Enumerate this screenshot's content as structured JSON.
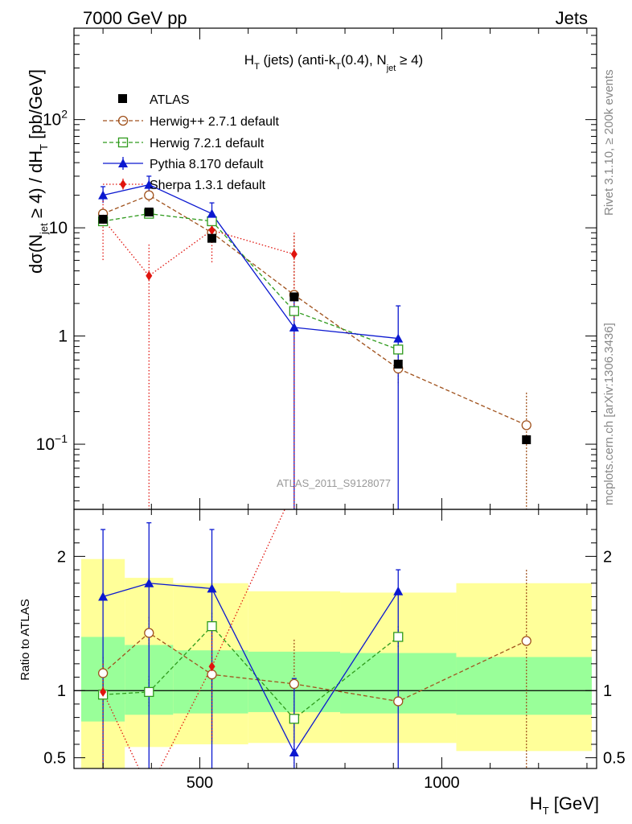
{
  "header": {
    "left": "7000 GeV pp",
    "right": "Jets"
  },
  "side_text": {
    "rivet": "Rivet 3.1.10, ≥ 200k events",
    "source": "mcplots.cern.ch [arXiv:1306.3436]"
  },
  "watermark": "ATLAS_2011_S9128077",
  "legend": {
    "atlas": "ATLAS",
    "herwigpp": "Herwig++ 2.7.1 default",
    "herwig7": "Herwig 7.2.1 default",
    "pythia": "Pythia 8.170 default",
    "sherpa": "Sherpa 1.3.1 default"
  },
  "colors": {
    "atlas": "#000000",
    "herwigpp": "#a0521d",
    "herwig7": "#2e9a1c",
    "pythia": "#0b18d0",
    "sherpa": "#e0140e",
    "band_inner": "#99ff99",
    "band_outer": "#ffff99"
  },
  "chart_data": [
    {
      "type": "line",
      "panel": "main",
      "title": "H_T (jets) (anti-k_T(0.4), N_jet ≥ 4)",
      "ylabel": "dσ(N_jet ≥ 4) / dH_T [pb/GeV]",
      "yscale": "log",
      "xlim": [
        240,
        1320
      ],
      "ylim": [
        0.025,
        700
      ],
      "yticks": [
        0.1,
        1,
        10,
        100
      ],
      "ytick_labels": [
        "10^-1",
        "1",
        "10",
        "10^2"
      ],
      "x": [
        300,
        395,
        525,
        695,
        910,
        1175
      ],
      "series": [
        {
          "name": "ATLAS",
          "values": [
            12,
            14,
            8,
            2.3,
            0.55,
            0.11
          ]
        },
        {
          "name": "Herwig++ 2.7.1 default",
          "values": [
            13.5,
            20,
            9,
            2.4,
            0.5,
            0.15
          ],
          "err_hi": [
            15,
            22,
            10,
            8.5,
            0.7,
            0.3
          ],
          "err_lo": [
            12,
            17.5,
            8.3,
            1.7,
            0.35,
            0.02
          ]
        },
        {
          "name": "Herwig 7.2.1 default",
          "values": [
            11.5,
            13.5,
            11.5,
            1.7,
            0.75,
            null
          ]
        },
        {
          "name": "Pythia 8.170 default",
          "values": [
            20,
            25,
            13.5,
            1.2,
            0.95,
            null
          ],
          "err_hi": [
            24,
            30,
            17,
            2.5,
            1.9,
            null
          ],
          "err_lo": [
            17,
            21,
            10.5,
            0.02,
            0.02,
            null
          ]
        },
        {
          "name": "Sherpa 1.3.1 default",
          "values": [
            12,
            3.6,
            9.5,
            5.7,
            null,
            null
          ],
          "err_hi": [
            19,
            7,
            12,
            9,
            null,
            null
          ],
          "err_lo": [
            5,
            0.02,
            4.7,
            0.02,
            null,
            null
          ]
        }
      ]
    },
    {
      "type": "line",
      "panel": "ratio",
      "ylabel": "Ratio to ATLAS",
      "xlabel": "H_T [GeV]",
      "xlim": [
        240,
        1320
      ],
      "ylim": [
        0.42,
        2.35
      ],
      "yticks": [
        0.5,
        1,
        2
      ],
      "ytick_labels": [
        "0.5",
        "1",
        "2"
      ],
      "xticks": [
        500,
        1000
      ],
      "xtick_labels": [
        "500",
        "1000"
      ],
      "x": [
        300,
        395,
        525,
        695,
        910,
        1175
      ],
      "bands": {
        "bin_edges": [
          255,
          345,
          445,
          600,
          790,
          1030,
          1310
        ],
        "inner_lo": [
          0.77,
          0.82,
          0.83,
          0.84,
          0.83,
          0.82
        ],
        "inner_hi": [
          1.4,
          1.34,
          1.3,
          1.29,
          1.28,
          1.25
        ],
        "outer_lo": [
          0.42,
          0.58,
          0.6,
          0.61,
          0.61,
          0.55
        ],
        "outer_hi": [
          1.98,
          1.84,
          1.8,
          1.74,
          1.73,
          1.8
        ]
      },
      "series": [
        {
          "name": "Herwig++ 2.7.1 default",
          "values": [
            1.13,
            1.43,
            1.12,
            1.05,
            0.92,
            1.37
          ],
          "err_hi": [
            1.25,
            1.55,
            1.25,
            1.38,
            null,
            1.9
          ],
          "err_lo": [
            1.02,
            1.33,
            0.62,
            0.42,
            null,
            0.42
          ]
        },
        {
          "name": "Herwig 7.2.1 default",
          "values": [
            0.97,
            0.99,
            1.48,
            0.79,
            1.4,
            null
          ],
          "err_hi": [
            1.05,
            1.11,
            1.58,
            0.86,
            1.48,
            null
          ],
          "err_lo": [
            0.88,
            0.88,
            1.38,
            0.72,
            1.32,
            null
          ]
        },
        {
          "name": "Pythia 8.170 default",
          "values": [
            1.7,
            1.8,
            1.76,
            0.54,
            1.74,
            null
          ],
          "err_hi": [
            2.2,
            2.25,
            2.2,
            1.09,
            1.9,
            null
          ],
          "err_lo": [
            0.42,
            0.42,
            0.42,
            0.42,
            0.42,
            null
          ]
        },
        {
          "name": "Sherpa 1.3.1 default",
          "values": [
            0.99,
            0.26,
            1.18,
            2.5,
            null,
            null
          ],
          "err_hi": [
            1.2,
            null,
            1.45,
            null,
            null,
            null
          ],
          "err_lo": [
            0.42,
            null,
            0.63,
            null,
            null,
            null
          ]
        }
      ]
    }
  ]
}
